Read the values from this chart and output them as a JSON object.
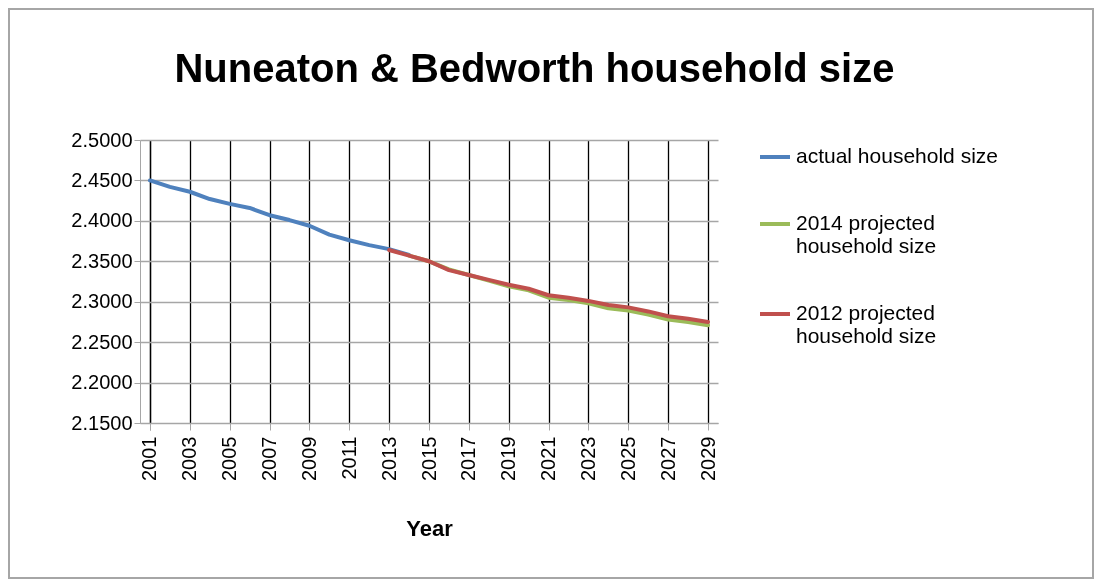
{
  "chart_data": {
    "type": "line",
    "title": "Nuneaton & Bedworth household size",
    "xlabel": "Year",
    "categories": [
      "2001",
      null,
      "2003",
      null,
      "2005",
      null,
      "2007",
      null,
      "2009",
      null,
      "2011",
      null,
      "2013",
      null,
      "2015",
      null,
      "2017",
      null,
      "2019",
      null,
      "2021",
      null,
      "2023",
      null,
      "2025",
      null,
      "2027",
      null,
      "2029"
    ],
    "series": [
      {
        "name": "actual household size",
        "color": "#4f81bd",
        "values": [
          2.45,
          2.442,
          2.436,
          2.427,
          2.421,
          2.416,
          2.407,
          2.401,
          2.394,
          2.383,
          2.376,
          2.37,
          2.365,
          2.358,
          null,
          null,
          null,
          null,
          null,
          null,
          null,
          null,
          null,
          null,
          null,
          null,
          null,
          null,
          null
        ]
      },
      {
        "name": "2014 projected household size",
        "color": "#9bbb59",
        "values": [
          null,
          null,
          null,
          null,
          null,
          null,
          null,
          null,
          null,
          null,
          null,
          null,
          null,
          2.357,
          2.35,
          2.34,
          2.333,
          2.326,
          2.319,
          2.314,
          2.305,
          2.302,
          2.298,
          2.292,
          2.289,
          2.284,
          2.278,
          2.275,
          2.271
        ]
      },
      {
        "name": "2012 projected household size",
        "color": "#c0504d",
        "values": [
          null,
          null,
          null,
          null,
          null,
          null,
          null,
          null,
          null,
          null,
          null,
          null,
          2.364,
          2.357,
          2.35,
          2.339,
          2.333,
          2.327,
          2.321,
          2.316,
          2.308,
          2.305,
          2.301,
          2.296,
          2.293,
          2.288,
          2.282,
          2.279,
          2.275
        ]
      }
    ],
    "ylim": [
      2.15,
      2.5
    ],
    "yticks": [
      {
        "value": 2.15,
        "label": "2.1500"
      },
      {
        "value": 2.2,
        "label": "2.2000"
      },
      {
        "value": 2.25,
        "label": "2.2500"
      },
      {
        "value": 2.3,
        "label": "2.3000"
      },
      {
        "value": 2.35,
        "label": "2.3500"
      },
      {
        "value": 2.4,
        "label": "2.4000"
      },
      {
        "value": 2.45,
        "label": "2.4500"
      },
      {
        "value": 2.5,
        "label": "2.5000"
      }
    ],
    "grid": true,
    "legend": "right",
    "marker": "none",
    "line_style": "solid"
  }
}
